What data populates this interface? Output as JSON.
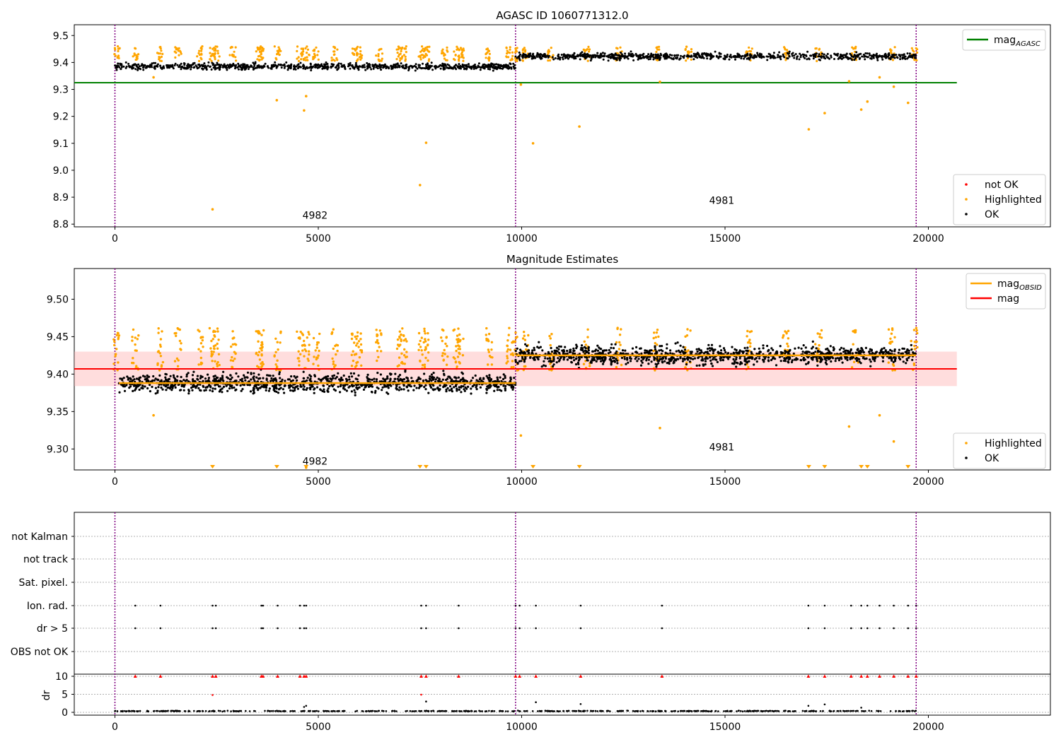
{
  "figure": {
    "panel1_title": "AGASC ID 1060771312.0",
    "panel2_title": "Magnitude Estimates"
  },
  "colors": {
    "ok": "#000000",
    "highlighted": "#ffa500",
    "not_ok": "#ff0000",
    "agasc_line": "#008000",
    "mag_line": "#ff0000",
    "obsid_mag": "#ffa500",
    "band": "#ffb3b3",
    "obs_boundary": "#800080",
    "grid": "#b0b0b0"
  },
  "chart_data": [
    {
      "type": "scatter",
      "title": "AGASC ID 1060771312.0",
      "xlim": [
        -1000,
        23000
      ],
      "ylim": [
        8.79,
        9.54
      ],
      "xticks": [
        0,
        5000,
        10000,
        15000,
        20000
      ],
      "yticks": [
        8.8,
        8.9,
        9.0,
        9.1,
        9.2,
        9.3,
        9.4,
        9.5
      ],
      "ytick_labels": [
        "8.8",
        "8.9",
        "9.0",
        "9.1",
        "9.2",
        "9.3",
        "9.4",
        "9.5"
      ],
      "obsid_boundaries": [
        0,
        9850,
        19700
      ],
      "obsid_labels": [
        {
          "obsid": "4982",
          "x": 4920,
          "y": 8.82
        },
        {
          "obsid": "4981",
          "x": 14920,
          "y": 8.875
        }
      ],
      "mag_agasc": {
        "value": 9.325,
        "x_range": [
          -1000,
          20700
        ]
      },
      "series": [
        {
          "name": "OK",
          "segments": [
            {
              "x_range": [
                0,
                9850
              ],
              "center": 9.385,
              "spread": 0.02,
              "count": 800
            },
            {
              "x_range": [
                9850,
                19700
              ],
              "center": 9.423,
              "spread": 0.02,
              "count": 800
            }
          ]
        },
        {
          "name": "Highlighted",
          "burst_x": [
            50,
            500,
            1120,
            1550,
            2100,
            2400,
            2500,
            2900,
            3550,
            3600,
            4000,
            4550,
            4700,
            4950,
            5400,
            5900,
            6000,
            6500,
            7000,
            7100,
            7550,
            7650,
            8100,
            8400,
            8500,
            9200,
            9700,
            9850,
            10100,
            10700,
            11600,
            12400,
            13300,
            14100,
            15600,
            16500,
            17300,
            18200,
            19100,
            19650
          ],
          "points": [
            {
              "x": 950,
              "y": 9.345
            },
            {
              "x": 2400,
              "y": 8.855
            },
            {
              "x": 3980,
              "y": 9.26
            },
            {
              "x": 4650,
              "y": 9.222
            },
            {
              "x": 4700,
              "y": 9.275
            },
            {
              "x": 7500,
              "y": 8.945
            },
            {
              "x": 7650,
              "y": 9.102
            },
            {
              "x": 10280,
              "y": 9.1
            },
            {
              "x": 11420,
              "y": 9.162
            },
            {
              "x": 9980,
              "y": 9.318
            },
            {
              "x": 13400,
              "y": 9.328
            },
            {
              "x": 17060,
              "y": 9.152
            },
            {
              "x": 17450,
              "y": 9.212
            },
            {
              "x": 18050,
              "y": 9.33
            },
            {
              "x": 18350,
              "y": 9.225
            },
            {
              "x": 18500,
              "y": 9.255
            },
            {
              "x": 18800,
              "y": 9.345
            },
            {
              "x": 19150,
              "y": 9.31
            },
            {
              "x": 19500,
              "y": 9.25
            }
          ]
        },
        {
          "name": "not OK",
          "points": []
        }
      ],
      "legend_upper": [
        {
          "label": "mag",
          "sub": "AGASC",
          "kind": "line",
          "color": "#008000"
        }
      ],
      "legend_lower": [
        {
          "label": "not OK",
          "kind": "dot",
          "color": "#ff0000"
        },
        {
          "label": "Highlighted",
          "kind": "dot",
          "color": "#ffa500"
        },
        {
          "label": "OK",
          "kind": "dot",
          "color": "#000000"
        }
      ]
    },
    {
      "type": "scatter",
      "title": "Magnitude Estimates",
      "xlim": [
        -1000,
        23000
      ],
      "ylim": [
        9.272,
        9.541
      ],
      "xticks": [
        0,
        5000,
        10000,
        15000,
        20000
      ],
      "yticks": [
        9.3,
        9.35,
        9.4,
        9.45,
        9.5
      ],
      "ytick_labels": [
        "9.30",
        "9.35",
        "9.40",
        "9.45",
        "9.50"
      ],
      "obsid_boundaries": [
        0,
        9850,
        19700
      ],
      "obsid_labels": [
        {
          "obsid": "4982",
          "x": 4920,
          "y": 9.279
        },
        {
          "obsid": "4981",
          "x": 14920,
          "y": 9.298
        }
      ],
      "mag": {
        "value": 9.407,
        "band": [
          9.384,
          9.43
        ],
        "x_range": [
          -1000,
          20700
        ]
      },
      "mag_obsid": [
        {
          "obsid": "4982",
          "x_range": [
            100,
            9850
          ],
          "value": 9.388
        },
        {
          "obsid": "4981",
          "x_range": [
            9850,
            19700
          ],
          "value": 9.425
        }
      ],
      "out_of_range_x": [
        2400,
        3980,
        4700,
        7500,
        7650,
        10280,
        11420,
        17060,
        17450,
        18350,
        18500,
        19500
      ],
      "legend_upper": [
        {
          "label": "mag",
          "sub": "OBSID",
          "kind": "line",
          "color": "#ffa500"
        },
        {
          "label": "mag",
          "sub": "",
          "kind": "line",
          "color": "#ff0000"
        }
      ],
      "legend_lower": [
        {
          "label": "Highlighted",
          "kind": "dot",
          "color": "#ffa500"
        },
        {
          "label": "OK",
          "kind": "dot",
          "color": "#000000"
        }
      ]
    },
    {
      "type": "scatter",
      "title": "",
      "xlim": [
        -1000,
        23000
      ],
      "xticks": [
        0,
        5000,
        10000,
        15000,
        20000
      ],
      "flag_rows": [
        "not Kalman",
        "not track",
        "Sat. pixel.",
        "Ion. rad.",
        "dr > 5",
        "OBS not OK"
      ],
      "flag_events_x": [
        500,
        1120,
        2400,
        2480,
        3600,
        3640,
        4000,
        4550,
        4650,
        4700,
        7530,
        7650,
        8450,
        9850,
        9950,
        10350,
        11450,
        13450,
        17050,
        17450,
        18100,
        18350,
        18500,
        18800,
        19150,
        19500,
        19700
      ],
      "dr": {
        "ylabel": "dr",
        "ylim": [
          -0.5,
          10.5
        ],
        "yticks": [
          0,
          5,
          10
        ],
        "ytick_labels": [
          "0",
          "5",
          "10"
        ],
        "baseline": {
          "center": 0.35,
          "spread": 0.2,
          "count": 600
        },
        "capped_value": 10,
        "extra_points": [
          {
            "x": 2400,
            "y": 4.8
          },
          {
            "x": 7530,
            "y": 4.9
          },
          {
            "x": 7650,
            "y": 3.0
          },
          {
            "x": 4650,
            "y": 1.5
          },
          {
            "x": 4700,
            "y": 1.8
          },
          {
            "x": 10350,
            "y": 2.8
          },
          {
            "x": 11450,
            "y": 2.3
          },
          {
            "x": 17050,
            "y": 1.8
          },
          {
            "x": 17450,
            "y": 2.2
          },
          {
            "x": 18350,
            "y": 1.3
          }
        ]
      }
    }
  ]
}
